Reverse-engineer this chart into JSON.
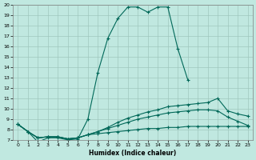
{
  "xlabel": "Humidex (Indice chaleur)",
  "bg_color": "#c0e8e0",
  "grid_color": "#a0c8be",
  "line_color": "#006858",
  "xlim": [
    -0.5,
    23.5
  ],
  "ylim": [
    7,
    20
  ],
  "xticks": [
    0,
    1,
    2,
    3,
    4,
    5,
    6,
    7,
    8,
    9,
    10,
    11,
    12,
    13,
    14,
    15,
    16,
    17,
    18,
    19,
    20,
    21,
    22,
    23
  ],
  "yticks": [
    7,
    8,
    9,
    10,
    11,
    12,
    13,
    14,
    15,
    16,
    17,
    18,
    19,
    20
  ],
  "curves": [
    {
      "x": [
        0,
        1,
        2,
        3,
        4,
        5,
        6,
        7,
        8,
        9,
        10,
        11,
        12,
        13,
        14,
        15,
        16,
        17
      ],
      "y": [
        8.5,
        7.8,
        6.8,
        7.2,
        7.2,
        7.0,
        7.1,
        9.0,
        13.5,
        16.8,
        18.7,
        19.8,
        19.8,
        19.3,
        19.8,
        19.8,
        15.8,
        12.8
      ]
    },
    {
      "x": [
        0,
        1,
        2,
        3,
        4,
        5,
        6,
        7,
        8,
        9,
        10,
        11,
        12,
        13,
        14,
        15,
        16,
        17,
        18,
        19,
        20,
        21,
        22,
        23
      ],
      "y": [
        8.5,
        7.8,
        7.2,
        7.3,
        7.3,
        7.1,
        7.2,
        7.5,
        7.8,
        8.2,
        8.7,
        9.1,
        9.4,
        9.7,
        9.9,
        10.2,
        10.3,
        10.4,
        10.5,
        10.6,
        11.0,
        9.8,
        9.5,
        9.3
      ]
    },
    {
      "x": [
        0,
        1,
        2,
        3,
        4,
        5,
        6,
        7,
        8,
        9,
        10,
        11,
        12,
        13,
        14,
        15,
        16,
        17,
        18,
        19,
        20,
        21,
        22,
        23
      ],
      "y": [
        8.5,
        7.8,
        7.2,
        7.3,
        7.3,
        7.1,
        7.2,
        7.5,
        7.8,
        8.1,
        8.4,
        8.7,
        9.0,
        9.2,
        9.4,
        9.6,
        9.7,
        9.8,
        9.9,
        9.9,
        9.8,
        9.2,
        8.8,
        8.4
      ]
    },
    {
      "x": [
        0,
        1,
        2,
        3,
        4,
        5,
        6,
        7,
        8,
        9,
        10,
        11,
        12,
        13,
        14,
        15,
        16,
        17,
        18,
        19,
        20,
        21,
        22,
        23
      ],
      "y": [
        8.5,
        7.8,
        7.2,
        7.3,
        7.3,
        7.1,
        7.2,
        7.5,
        7.6,
        7.7,
        7.8,
        7.9,
        8.0,
        8.1,
        8.1,
        8.2,
        8.2,
        8.3,
        8.3,
        8.3,
        8.3,
        8.3,
        8.3,
        8.3
      ]
    }
  ]
}
